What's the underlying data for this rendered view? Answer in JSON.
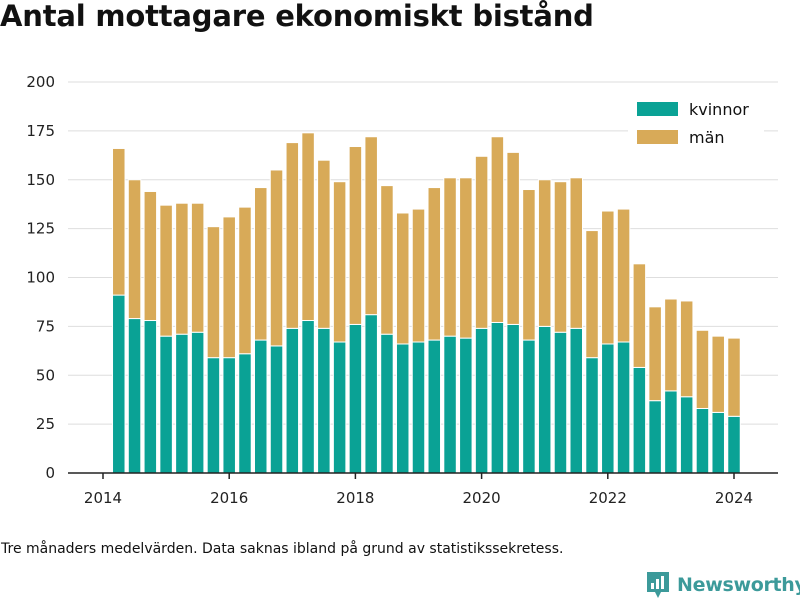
{
  "title": "Antal mottagare ekonomiskt bistånd",
  "note": "Tre månaders medelvärden. Data saknas ibland på grund av statistikssekretess.",
  "brand": {
    "name": "Newsworthy"
  },
  "colors": {
    "kvinnor": "#0aa295",
    "man": "#d8aa58",
    "grid": "#dedede",
    "axis": "#222222",
    "brand": "#3c9a9a"
  },
  "chart_data": {
    "type": "bar",
    "stacked": true,
    "x_unit": "quarter",
    "x_ticks": [
      "2014",
      "2016",
      "2018",
      "2020",
      "2022",
      "2024"
    ],
    "y_ticks": [
      "0",
      "25",
      "50",
      "75",
      "100",
      "125",
      "150",
      "175",
      "200"
    ],
    "ylim": [
      0,
      200
    ],
    "grid": true,
    "legend_position": "top-right",
    "categories": [
      "2014Q2",
      "2014Q3",
      "2014Q4",
      "2015Q1",
      "2015Q2",
      "2015Q3",
      "2015Q4",
      "2016Q1",
      "2016Q2",
      "2016Q3",
      "2016Q4",
      "2017Q1",
      "2017Q2",
      "2017Q3",
      "2017Q4",
      "2018Q1",
      "2018Q2",
      "2018Q3",
      "2018Q4",
      "2019Q1",
      "2019Q2",
      "2019Q3",
      "2019Q4",
      "2020Q1",
      "2020Q2",
      "2020Q3",
      "2020Q4",
      "2021Q1",
      "2021Q2",
      "2021Q3",
      "2021Q4",
      "2022Q1",
      "2022Q2",
      "2022Q3",
      "2022Q4",
      "2023Q1",
      "2023Q2",
      "2023Q3",
      "2023Q4",
      "2024Q1"
    ],
    "series": [
      {
        "name": "kvinnor",
        "values": [
          91,
          79,
          78,
          70,
          71,
          72,
          59,
          59,
          61,
          68,
          65,
          74,
          78,
          74,
          67,
          76,
          81,
          71,
          66,
          67,
          68,
          70,
          69,
          74,
          77,
          76,
          68,
          75,
          72,
          74,
          59,
          66,
          67,
          54,
          37,
          42,
          39,
          33,
          31,
          29
        ]
      },
      {
        "name": "män",
        "values": [
          75,
          71,
          66,
          67,
          67,
          66,
          67,
          72,
          75,
          78,
          90,
          95,
          96,
          86,
          82,
          91,
          91,
          76,
          67,
          68,
          78,
          81,
          82,
          88,
          95,
          88,
          77,
          75,
          77,
          77,
          65,
          68,
          68,
          53,
          48,
          47,
          49,
          40,
          39,
          40
        ]
      }
    ]
  }
}
